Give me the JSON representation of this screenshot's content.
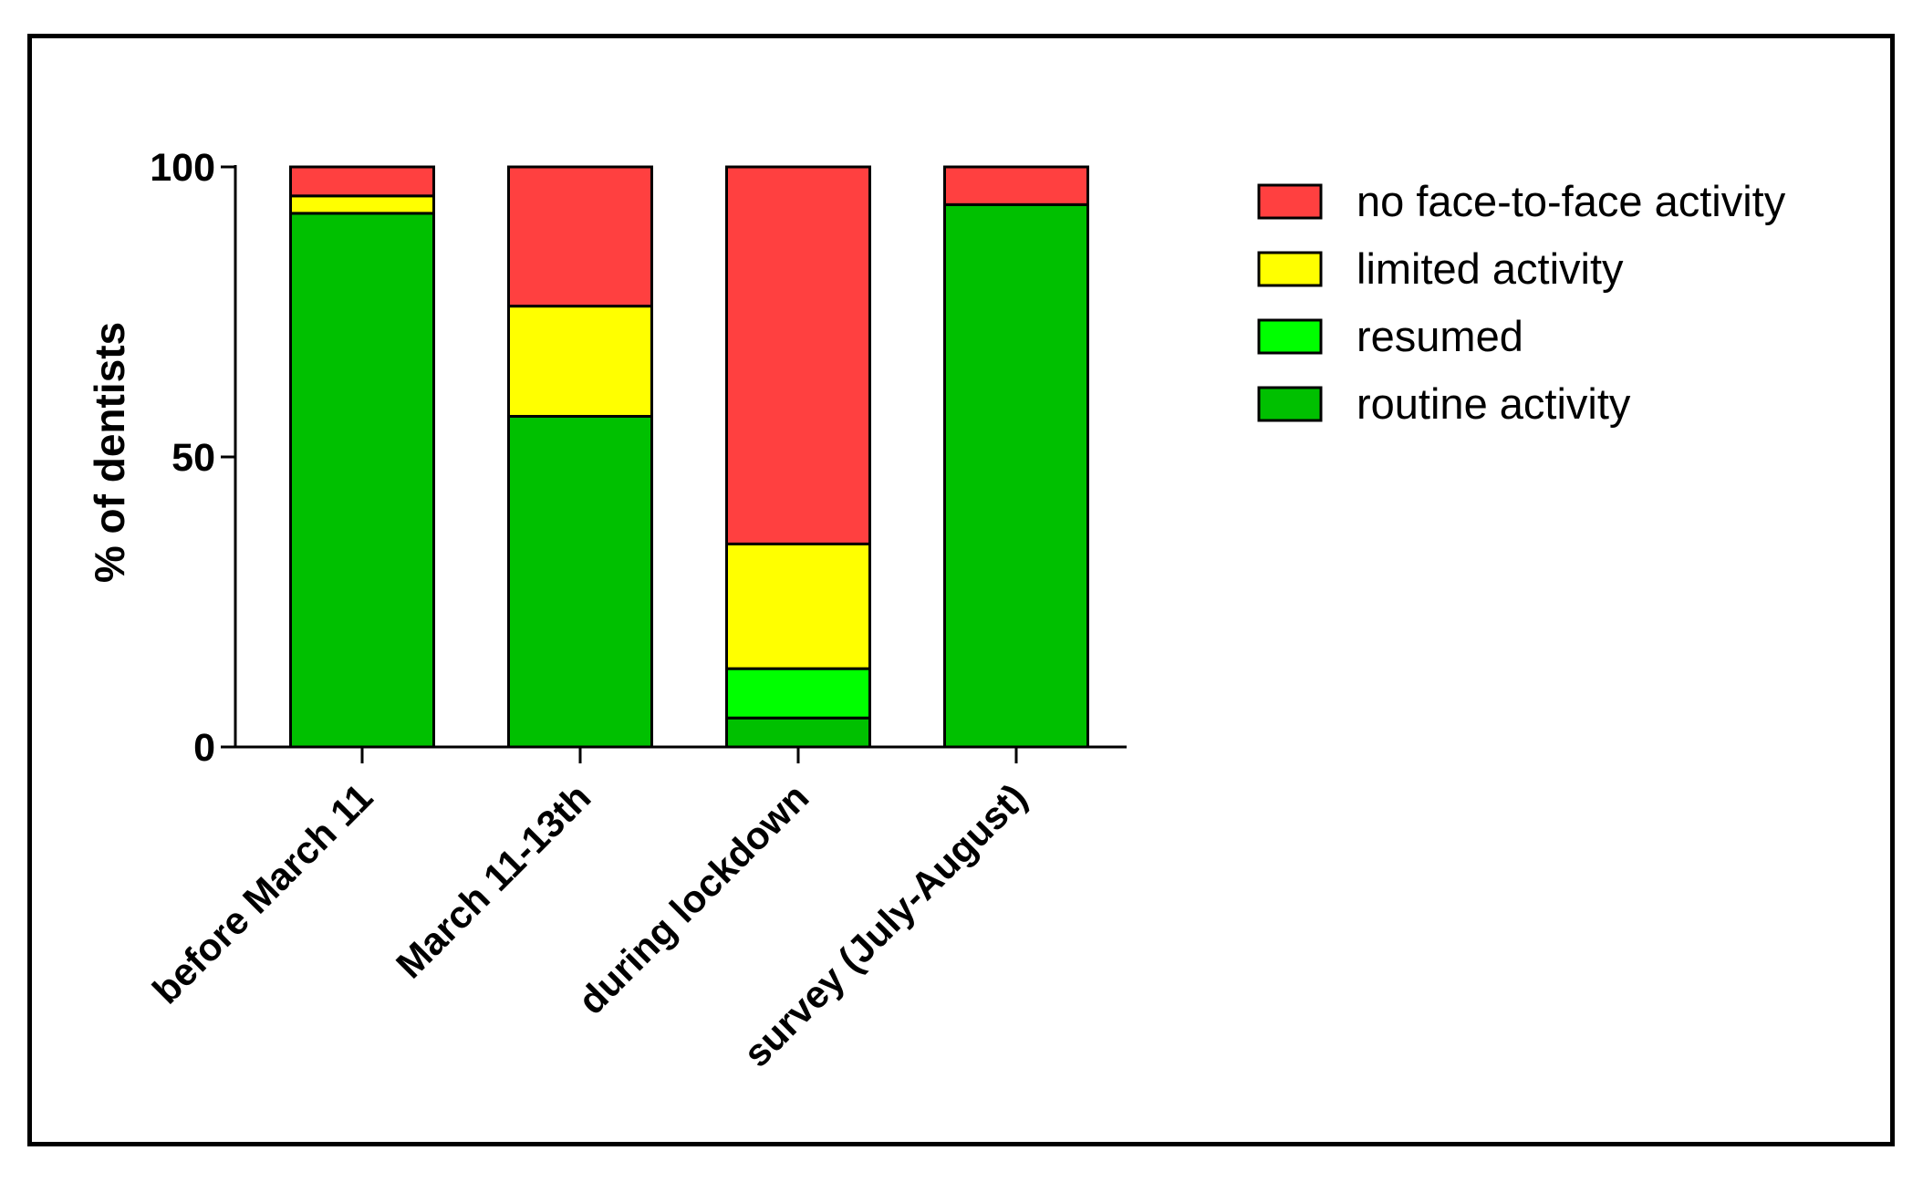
{
  "chart_data": {
    "type": "bar",
    "stacked": true,
    "title": "",
    "xlabel": "",
    "ylabel": "% of dentists",
    "ylim": [
      0,
      100
    ],
    "yticks": [
      0,
      50,
      100
    ],
    "grid": false,
    "legend_position": "right",
    "categories": [
      "before March 11",
      "March 11-13th",
      "during lockdown",
      "survey (July-August)"
    ],
    "series": [
      {
        "name": "routine activity",
        "color": "#00c000",
        "values": [
          92,
          57,
          5,
          93.5
        ]
      },
      {
        "name": "resumed",
        "color": "#00ff00",
        "values": [
          0,
          0,
          8.5,
          0
        ]
      },
      {
        "name": "limited activity",
        "color": "#ffff00",
        "values": [
          3,
          19,
          21.5,
          0
        ]
      },
      {
        "name": "no face-to-face activity",
        "color": "#ff4040",
        "values": [
          5,
          24,
          65,
          6.5
        ]
      }
    ],
    "legend_order": [
      "no face-to-face activity",
      "limited activity",
      "resumed",
      "routine activity"
    ]
  }
}
